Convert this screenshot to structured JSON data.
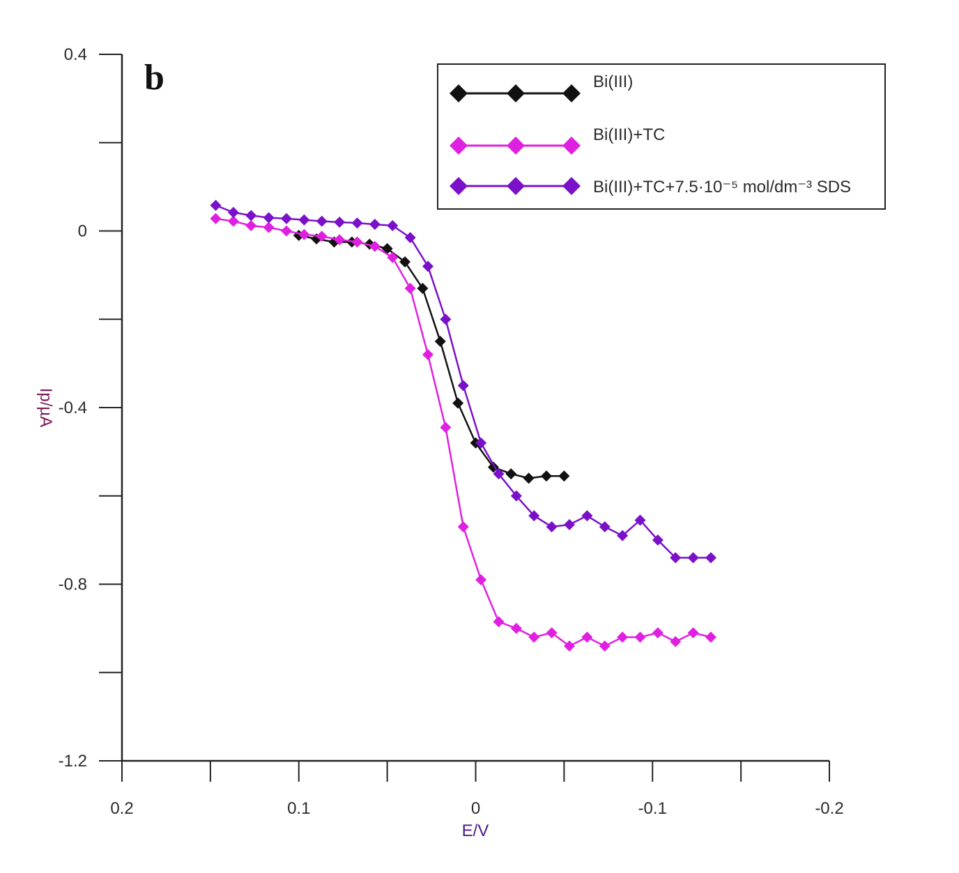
{
  "chart_data": {
    "type": "line",
    "panel_label": "b",
    "xlabel": "E/V",
    "ylabel": "Ip/µA",
    "xlim": [
      0.2,
      -0.2
    ],
    "ylim": [
      -1.2,
      0.4
    ],
    "x_ticks": [
      0.2,
      0.15,
      0.1,
      0.05,
      0,
      -0.05,
      -0.1,
      -0.15,
      -0.2
    ],
    "x_tick_labels": [
      {
        "value": 0.2,
        "label": "0.2"
      },
      {
        "value": 0.1,
        "label": "0.1"
      },
      {
        "value": 0,
        "label": "0"
      },
      {
        "value": -0.1,
        "label": "-0.1"
      },
      {
        "value": -0.2,
        "label": "-0.2"
      }
    ],
    "y_ticks": [
      0.4,
      0.2,
      0,
      -0.2,
      -0.4,
      -0.6,
      -0.8,
      -1.0,
      -1.2
    ],
    "y_tick_labels": [
      {
        "value": 0.4,
        "label": "0.4"
      },
      {
        "value": 0,
        "label": "0"
      },
      {
        "value": -0.4,
        "label": "-0.4"
      },
      {
        "value": -0.8,
        "label": "-0.8"
      },
      {
        "value": -1.2,
        "label": "-1.2"
      }
    ],
    "legend_position": "top-right",
    "series": [
      {
        "name": "Bi(III)",
        "color": "#111111",
        "marker_size": "small",
        "x": [
          0.1,
          0.09,
          0.08,
          0.07,
          0.06,
          0.05,
          0.04,
          0.03,
          0.02,
          0.01,
          0.0,
          -0.01,
          -0.02,
          -0.03,
          -0.04,
          -0.05
        ],
        "y": [
          -0.01,
          -0.018,
          -0.025,
          -0.025,
          -0.03,
          -0.04,
          -0.07,
          -0.13,
          -0.25,
          -0.39,
          -0.48,
          -0.535,
          -0.55,
          -0.56,
          -0.555,
          -0.555
        ]
      },
      {
        "name": "Bi(III)+TC",
        "color": "#e020e0",
        "marker_size": "small",
        "x": [
          0.147,
          0.137,
          0.127,
          0.117,
          0.107,
          0.097,
          0.087,
          0.077,
          0.067,
          0.057,
          0.047,
          0.037,
          0.027,
          0.017,
          0.007,
          -0.003,
          -0.013,
          -0.023,
          -0.033,
          -0.043,
          -0.053,
          -0.063,
          -0.073,
          -0.083,
          -0.093,
          -0.103,
          -0.113,
          -0.123,
          -0.133
        ],
        "y": [
          0.028,
          0.022,
          0.012,
          0.008,
          0.0,
          -0.008,
          -0.012,
          -0.02,
          -0.025,
          -0.035,
          -0.06,
          -0.13,
          -0.28,
          -0.445,
          -0.67,
          -0.79,
          -0.885,
          -0.9,
          -0.92,
          -0.91,
          -0.94,
          -0.92,
          -0.94,
          -0.92,
          -0.92,
          -0.91,
          -0.93,
          -0.91,
          -0.92
        ]
      },
      {
        "name": "Bi(III)+TC+7.5·10⁻⁵ mol/dm⁻³ SDS",
        "color": "#7a10c8",
        "marker_size": "small",
        "x": [
          0.147,
          0.137,
          0.127,
          0.117,
          0.107,
          0.097,
          0.087,
          0.077,
          0.067,
          0.057,
          0.047,
          0.037,
          0.027,
          0.017,
          0.007,
          -0.003,
          -0.013,
          -0.023,
          -0.033,
          -0.043,
          -0.053,
          -0.063,
          -0.073,
          -0.083,
          -0.093,
          -0.103,
          -0.113,
          -0.123,
          -0.133
        ],
        "y": [
          0.058,
          0.042,
          0.035,
          0.03,
          0.028,
          0.025,
          0.022,
          0.02,
          0.018,
          0.015,
          0.012,
          -0.015,
          -0.08,
          -0.2,
          -0.35,
          -0.48,
          -0.55,
          -0.6,
          -0.645,
          -0.67,
          -0.665,
          -0.645,
          -0.67,
          -0.69,
          -0.655,
          -0.7,
          -0.74,
          -0.74,
          -0.74
        ]
      }
    ]
  }
}
